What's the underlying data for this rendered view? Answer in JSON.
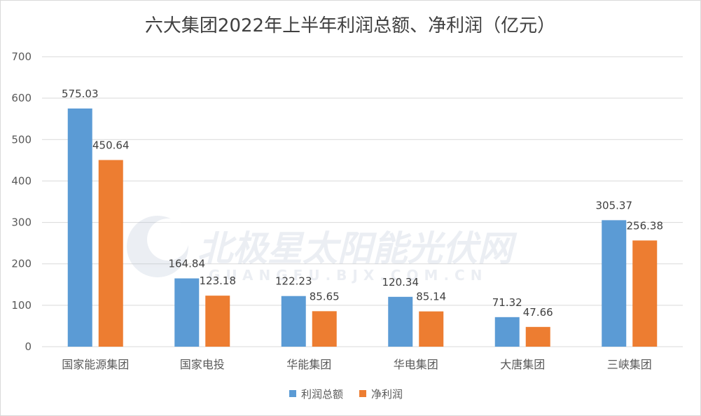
{
  "chart_data": {
    "type": "bar",
    "title": "六大集团2022年上半年利润总额、净利润（亿元）",
    "categories": [
      "国家能源集团",
      "国家电投",
      "华能集团",
      "华电集团",
      "大唐集团",
      "三峡集团"
    ],
    "series": [
      {
        "name": "利润总额",
        "values": [
          575.03,
          164.84,
          122.23,
          120.34,
          71.32,
          305.37
        ],
        "color": "#5b9bd5"
      },
      {
        "name": "净利润",
        "values": [
          450.64,
          123.18,
          85.65,
          85.14,
          47.66,
          256.38
        ],
        "color": "#ed7d31"
      }
    ],
    "ylim": [
      0,
      700
    ],
    "yticks": [
      0,
      100,
      200,
      300,
      400,
      500,
      600,
      700
    ],
    "grid": true,
    "legend": "bottom"
  },
  "watermark": {
    "main": "北极星太阳能光伏网",
    "sub": "GUANGFU.BJX.COM.CN"
  }
}
